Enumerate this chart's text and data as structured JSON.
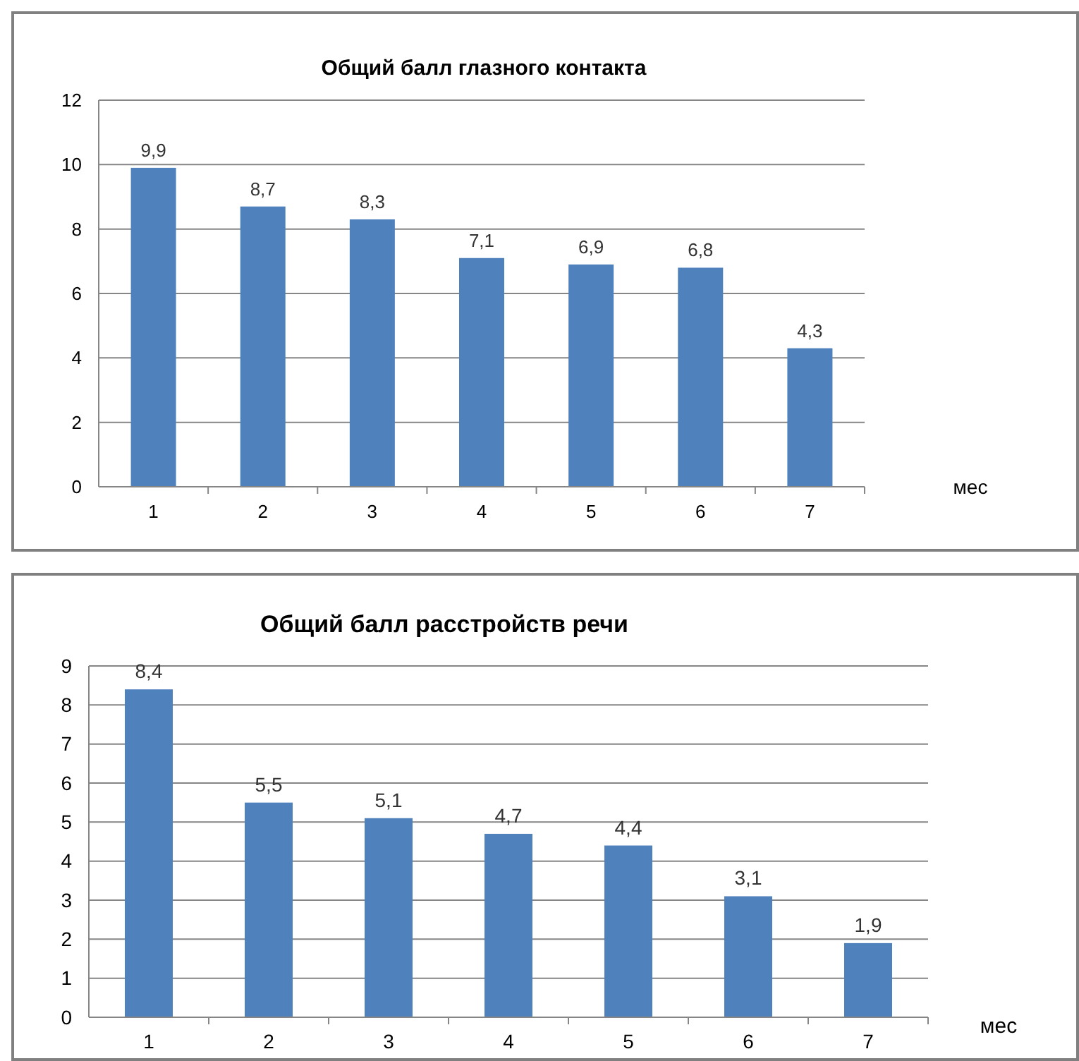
{
  "chart_data": [
    {
      "type": "bar",
      "title": "Общий балл глазного контакта",
      "xlabel": "мес",
      "categories": [
        "1",
        "2",
        "3",
        "4",
        "5",
        "6",
        "7"
      ],
      "values": [
        9.9,
        8.7,
        8.3,
        7.1,
        6.9,
        6.8,
        4.3
      ],
      "value_labels": [
        "9,9",
        "8,7",
        "8,3",
        "7,1",
        "6,9",
        "6,8",
        "4,3"
      ],
      "color": "#4f81bd",
      "ylim": [
        0,
        12
      ],
      "yticks": [
        0,
        2,
        4,
        6,
        8,
        10,
        12
      ],
      "grid": "y"
    },
    {
      "type": "bar",
      "title": "Общий балл расстройств речи",
      "xlabel": "мес",
      "categories": [
        "1",
        "2",
        "3",
        "4",
        "5",
        "6",
        "7"
      ],
      "values": [
        8.4,
        5.5,
        5.1,
        4.7,
        4.4,
        3.1,
        1.9
      ],
      "value_labels": [
        "8,4",
        "5,5",
        "5,1",
        "4,7",
        "4,4",
        "3,1",
        "1,9"
      ],
      "color": "#4f81bd",
      "ylim": [
        0,
        9
      ],
      "yticks": [
        0,
        1,
        2,
        3,
        4,
        5,
        6,
        7,
        8,
        9
      ],
      "grid": "y"
    }
  ]
}
